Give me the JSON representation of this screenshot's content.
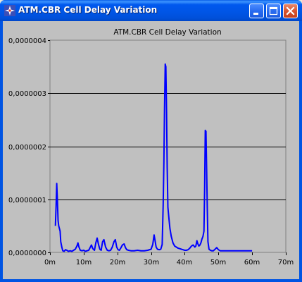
{
  "window": {
    "title": "ATM.CBR Cell Delay Variation",
    "controls": {
      "minimize_icon": "minimize-icon",
      "maximize_icon": "maximize-icon",
      "close_icon": "close-icon"
    }
  },
  "chart_data": {
    "type": "line",
    "title": "ATM.CBR Cell Delay Variation",
    "xlabel": "",
    "ylabel": "",
    "xlim": [
      0,
      70
    ],
    "ylim": [
      0,
      4e-07
    ],
    "x_tick_values": [
      0,
      10,
      20,
      30,
      40,
      50,
      60,
      70
    ],
    "x_tick_labels": [
      "0m",
      "10m",
      "20m",
      "30m",
      "40m",
      "50m",
      "60m",
      "70m"
    ],
    "y_tick_values": [
      0,
      1e-07,
      2e-07,
      3e-07,
      4e-07
    ],
    "y_tick_labels": [
      "0,0000000",
      "0,0000001",
      "0,0000002",
      "0,0000003",
      "0,0000004"
    ],
    "grid": "horizontal",
    "series": [
      {
        "color": "#0000FF",
        "x": [
          1.6,
          1.8,
          2.0,
          2.2,
          2.4,
          2.6,
          2.8,
          3.0,
          3.2,
          3.5,
          3.8,
          4.2,
          4.6,
          5.0,
          5.5,
          6.0,
          6.5,
          7.0,
          7.5,
          8.0,
          8.3,
          8.6,
          9.0,
          9.5,
          10.0,
          10.5,
          11.0,
          11.5,
          12.0,
          12.3,
          12.7,
          13.2,
          13.6,
          14.0,
          14.4,
          14.8,
          15.2,
          15.6,
          16.0,
          16.5,
          17.0,
          17.5,
          18.0,
          18.5,
          19.0,
          19.4,
          19.8,
          20.2,
          20.6,
          21.0,
          21.5,
          22.0,
          22.4,
          22.8,
          23.3,
          24.0,
          25.0,
          26.0,
          27.0,
          28.0,
          29.0,
          30.0,
          30.5,
          30.9,
          31.2,
          31.5,
          31.9,
          32.4,
          32.9,
          33.3,
          33.6,
          33.8,
          34.0,
          34.2,
          34.4,
          34.6,
          34.8,
          35.0,
          35.3,
          35.6,
          36.0,
          36.5,
          37.0,
          37.5,
          38.0,
          38.5,
          39.0,
          39.5,
          40.0,
          40.5,
          41.0,
          41.5,
          42.0,
          42.5,
          43.0,
          43.3,
          43.6,
          43.9,
          44.2,
          44.5,
          44.8,
          45.1,
          45.4,
          45.7,
          45.9,
          46.1,
          46.3,
          46.5,
          46.7,
          46.9,
          47.2,
          47.6,
          48.0,
          48.5,
          49.0,
          49.5,
          50.0,
          50.5,
          51.0,
          52.0,
          53.0,
          54.0,
          55.0,
          56.0,
          57.0,
          58.0,
          59.0,
          60.0
        ],
        "y": [
          5e-08,
          8.5e-08,
          1.3e-07,
          1e-07,
          6e-08,
          5e-08,
          4.5e-08,
          4e-08,
          2e-08,
          1e-08,
          3e-09,
          2e-09,
          5e-09,
          4e-09,
          2e-09,
          3e-09,
          2e-09,
          4e-09,
          6e-09,
          1.2e-08,
          1.8e-08,
          1e-08,
          4e-09,
          3e-09,
          4e-09,
          2e-09,
          3e-09,
          4e-09,
          1e-08,
          1.4e-08,
          7e-09,
          4e-09,
          1.8e-08,
          2.7e-08,
          1.5e-08,
          6e-09,
          4e-09,
          2e-08,
          2.4e-08,
          1e-08,
          4e-09,
          3e-09,
          4e-09,
          1e-08,
          2e-08,
          2.4e-08,
          1e-08,
          5e-09,
          4e-09,
          8e-09,
          1.4e-08,
          1.6e-08,
          9e-09,
          5e-09,
          4e-09,
          3e-09,
          3e-09,
          4e-09,
          3e-09,
          3e-09,
          4e-09,
          6e-09,
          1.5e-08,
          3.3e-08,
          2.2e-08,
          1e-08,
          6e-09,
          5e-09,
          6e-09,
          1.5e-08,
          9e-08,
          1.7e-07,
          2.7e-07,
          3.55e-07,
          3.5e-07,
          2.65e-07,
          1.6e-07,
          8.5e-08,
          6.5e-08,
          4.5e-08,
          3e-08,
          1.8e-08,
          1.2e-08,
          1e-08,
          8e-09,
          7e-09,
          6e-09,
          5e-09,
          4e-09,
          4e-09,
          5e-09,
          8e-09,
          1.2e-08,
          1.4e-08,
          1e-08,
          1.2e-08,
          2.2e-08,
          1.6e-08,
          1.2e-08,
          1.4e-08,
          1.8e-08,
          2.5e-08,
          3e-08,
          4e-08,
          1.2e-07,
          2.3e-07,
          2.28e-07,
          1.6e-07,
          8e-08,
          2e-08,
          6e-09,
          4e-09,
          3e-09,
          3e-09,
          6e-09,
          9e-09,
          5e-09,
          3e-09,
          3e-09,
          3e-09,
          3e-09,
          3e-09,
          3e-09,
          3e-09,
          3e-09,
          3e-09,
          3e-09,
          3e-09
        ]
      }
    ]
  }
}
